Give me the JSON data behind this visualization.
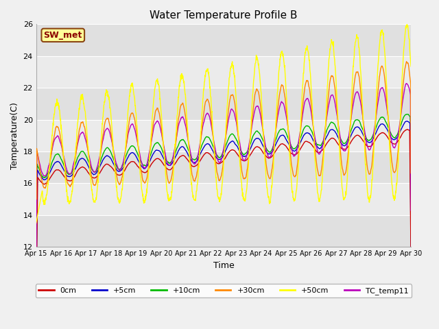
{
  "title": "Water Temperature Profile B",
  "xlabel": "Time",
  "ylabel": "Temperature(C)",
  "ylim": [
    12,
    26
  ],
  "yticks": [
    12,
    14,
    16,
    18,
    20,
    22,
    24,
    26
  ],
  "n_days": 15,
  "x_tick_labels": [
    "Apr 15",
    "Apr 16",
    "Apr 17",
    "Apr 18",
    "Apr 19",
    "Apr 20",
    "Apr 21",
    "Apr 22",
    "Apr 23",
    "Apr 24",
    "Apr 25",
    "Apr 26",
    "Apr 27",
    "Apr 28",
    "Apr 29",
    "Apr 30"
  ],
  "annotation_label": "SW_met",
  "annotation_color": "#8B0000",
  "annotation_bg": "#FFFF99",
  "annotation_border": "#8B4513",
  "colors": {
    "0cm": "#CC0000",
    "+5cm": "#0000CC",
    "+10cm": "#00BB00",
    "+30cm": "#FF8800",
    "+50cm": "#FFFF00",
    "TC_temp11": "#BB00BB"
  },
  "legend_labels": [
    "0cm",
    "+5cm",
    "+10cm",
    "+30cm",
    "+50cm",
    "TC_temp11"
  ],
  "band_colors": [
    "#E0E0E0",
    "#EBEBEB"
  ],
  "grid_line_color": "#FFFFFF",
  "title_fontsize": 11,
  "axis_label_fontsize": 9,
  "tick_fontsize": 8,
  "legend_fontsize": 8
}
